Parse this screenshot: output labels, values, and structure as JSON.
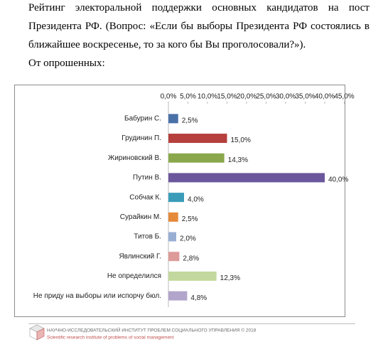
{
  "chart_data": {
    "type": "hbar",
    "title": "Рейтинг электоральной поддержки основных кандидатов на пост Президента РФ. (Вопрос: «Если бы выборы Президента РФ состоялись в ближайшее воскресенье, то за кого бы Вы проголосовали?»).",
    "subtitle": "От опрошенных:",
    "categories": [
      "Бабурин С.",
      "Грудинин П.",
      "Жириновский В.",
      "Путин В.",
      "Собчак К.",
      "Сурайкин М.",
      "Титов Б.",
      "Явлинский Г.",
      "Не определился",
      "Не приду на выборы или испорчу бюл."
    ],
    "values": [
      2.5,
      15.0,
      14.3,
      40.0,
      4.0,
      2.5,
      2.0,
      2.8,
      12.3,
      4.8
    ],
    "value_labels": [
      "2,5%",
      "15,0%",
      "14,3%",
      "40,0%",
      "4,0%",
      "2,5%",
      "2,0%",
      "2,8%",
      "12,3%",
      "4,8%"
    ],
    "colors": [
      "#4a70a8",
      "#b5403d",
      "#8aa84b",
      "#6b579c",
      "#3a9cb8",
      "#e5893a",
      "#98afd3",
      "#dc9a98",
      "#c3d89e",
      "#b2a5cb"
    ],
    "xlim": [
      0,
      45
    ],
    "xticks": [
      {
        "value": 0,
        "label": "0,0%"
      },
      {
        "value": 5,
        "label": "5,0%"
      },
      {
        "value": 10,
        "label": "10,0%"
      },
      {
        "value": 15,
        "label": "15,0%"
      },
      {
        "value": 20,
        "label": "20,0%"
      },
      {
        "value": 25,
        "label": "25,0%"
      },
      {
        "value": 30,
        "label": "30,0%"
      },
      {
        "value": 35,
        "label": "35,0%"
      },
      {
        "value": 40,
        "label": "40,0%"
      },
      {
        "value": 45,
        "label": "45,0%"
      }
    ],
    "grid": false
  },
  "footer": {
    "title": "НАУЧНО-ИССЛЕДОВАТЕЛЬСКИЙ ИНСТИТУТ ПРОБЛЕМ СОЦИАЛЬНОГО УПРАВЛЕНИЯ  © 2018",
    "subtitle": "Scientific research institute of problems of social management"
  }
}
